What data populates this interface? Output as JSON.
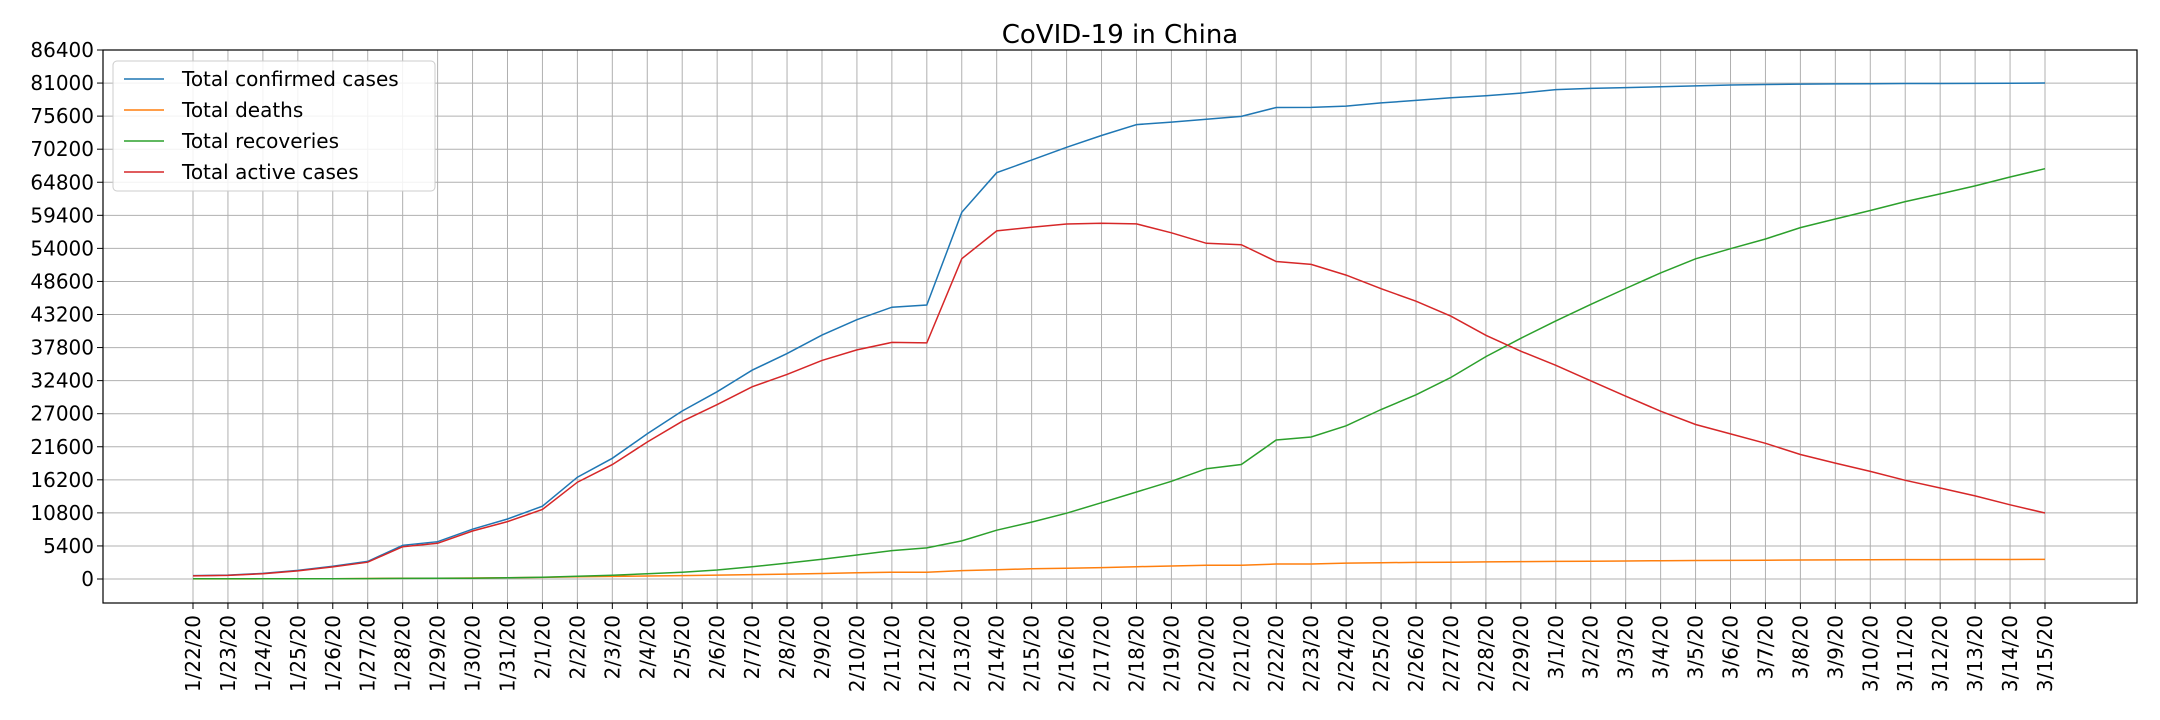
{
  "chart_data": {
    "type": "line",
    "title": "CoVID-19 in China",
    "xlabel": "",
    "ylabel": "",
    "ylim": [
      0,
      86400
    ],
    "yticks": [
      0,
      5400,
      10800,
      16200,
      21600,
      27000,
      32400,
      37800,
      43200,
      48600,
      54000,
      59400,
      64800,
      70200,
      75600,
      81000,
      86400
    ],
    "grid": true,
    "legend_position": "top-left",
    "categories": [
      "1/22/20",
      "1/23/20",
      "1/24/20",
      "1/25/20",
      "1/26/20",
      "1/27/20",
      "1/28/20",
      "1/29/20",
      "1/30/20",
      "1/31/20",
      "2/1/20",
      "2/2/20",
      "2/3/20",
      "2/4/20",
      "2/5/20",
      "2/6/20",
      "2/7/20",
      "2/8/20",
      "2/9/20",
      "2/10/20",
      "2/11/20",
      "2/12/20",
      "2/13/20",
      "2/14/20",
      "2/15/20",
      "2/16/20",
      "2/17/20",
      "2/18/20",
      "2/19/20",
      "2/20/20",
      "2/21/20",
      "2/22/20",
      "2/23/20",
      "2/24/20",
      "2/25/20",
      "2/26/20",
      "2/27/20",
      "2/28/20",
      "2/29/20",
      "3/1/20",
      "3/2/20",
      "3/3/20",
      "3/4/20",
      "3/5/20",
      "3/6/20",
      "3/7/20",
      "3/8/20",
      "3/9/20",
      "3/10/20",
      "3/11/20",
      "3/12/20",
      "3/13/20",
      "3/14/20",
      "3/15/20"
    ],
    "series": [
      {
        "name": "Total confirmed cases",
        "color": "#1f77b4",
        "values": [
          548,
          643,
          920,
          1406,
          2075,
          2877,
          5509,
          6087,
          8141,
          9802,
          11891,
          16630,
          19716,
          23707,
          27440,
          30587,
          34110,
          36814,
          39829,
          42354,
          44386,
          44759,
          59895,
          66358,
          68413,
          70513,
          72434,
          74211,
          74619,
          75077,
          75550,
          77001,
          77022,
          77241,
          77754,
          78166,
          78600,
          78928,
          79356,
          79932,
          80136,
          80261,
          80386,
          80537,
          80690,
          80770,
          80823,
          80860,
          80887,
          80921,
          80932,
          80945,
          80977,
          81003
        ]
      },
      {
        "name": "Total deaths",
        "color": "#ff7f0e",
        "values": [
          17,
          18,
          26,
          42,
          56,
          82,
          131,
          133,
          171,
          213,
          259,
          361,
          425,
          490,
          562,
          632,
          717,
          804,
          904,
          1011,
          1112,
          1117,
          1369,
          1521,
          1663,
          1766,
          1864,
          2003,
          2116,
          2238,
          2238,
          2443,
          2445,
          2595,
          2665,
          2717,
          2746,
          2790,
          2837,
          2872,
          2914,
          2947,
          2983,
          3015,
          3044,
          3072,
          3100,
          3123,
          3139,
          3161,
          3172,
          3180,
          3193,
          3203
        ]
      },
      {
        "name": "Total recoveries",
        "color": "#2ca02c",
        "values": [
          28,
          30,
          36,
          39,
          49,
          58,
          101,
          120,
          135,
          214,
          275,
          463,
          614,
          843,
          1115,
          1477,
          1999,
          2596,
          3219,
          3918,
          4636,
          5082,
          6217,
          7977,
          9298,
          10755,
          12462,
          14206,
          15962,
          18014,
          18704,
          22699,
          23187,
          25015,
          27676,
          30084,
          32930,
          36329,
          39320,
          42162,
          44854,
          47450,
          50001,
          52292,
          53944,
          55539,
          57388,
          58804,
          60181,
          61644,
          62901,
          64196,
          65660,
          67017
        ]
      },
      {
        "name": "Total active cases",
        "color": "#d62728",
        "values": [
          503,
          595,
          858,
          1325,
          1970,
          2737,
          5277,
          5834,
          7835,
          9375,
          11357,
          15806,
          18677,
          22374,
          25763,
          28478,
          31394,
          33414,
          35706,
          37425,
          38638,
          38560,
          52309,
          56860,
          57452,
          57984,
          58108,
          58002,
          56541,
          54825,
          54608,
          51859,
          51390,
          49631,
          47413,
          45365,
          42924,
          39809,
          37199,
          34898,
          32368,
          29864,
          27402,
          25230,
          23702,
          22159,
          20335,
          18933,
          17567,
          16116,
          14859,
          13569,
          12124,
          10783
        ]
      }
    ]
  }
}
